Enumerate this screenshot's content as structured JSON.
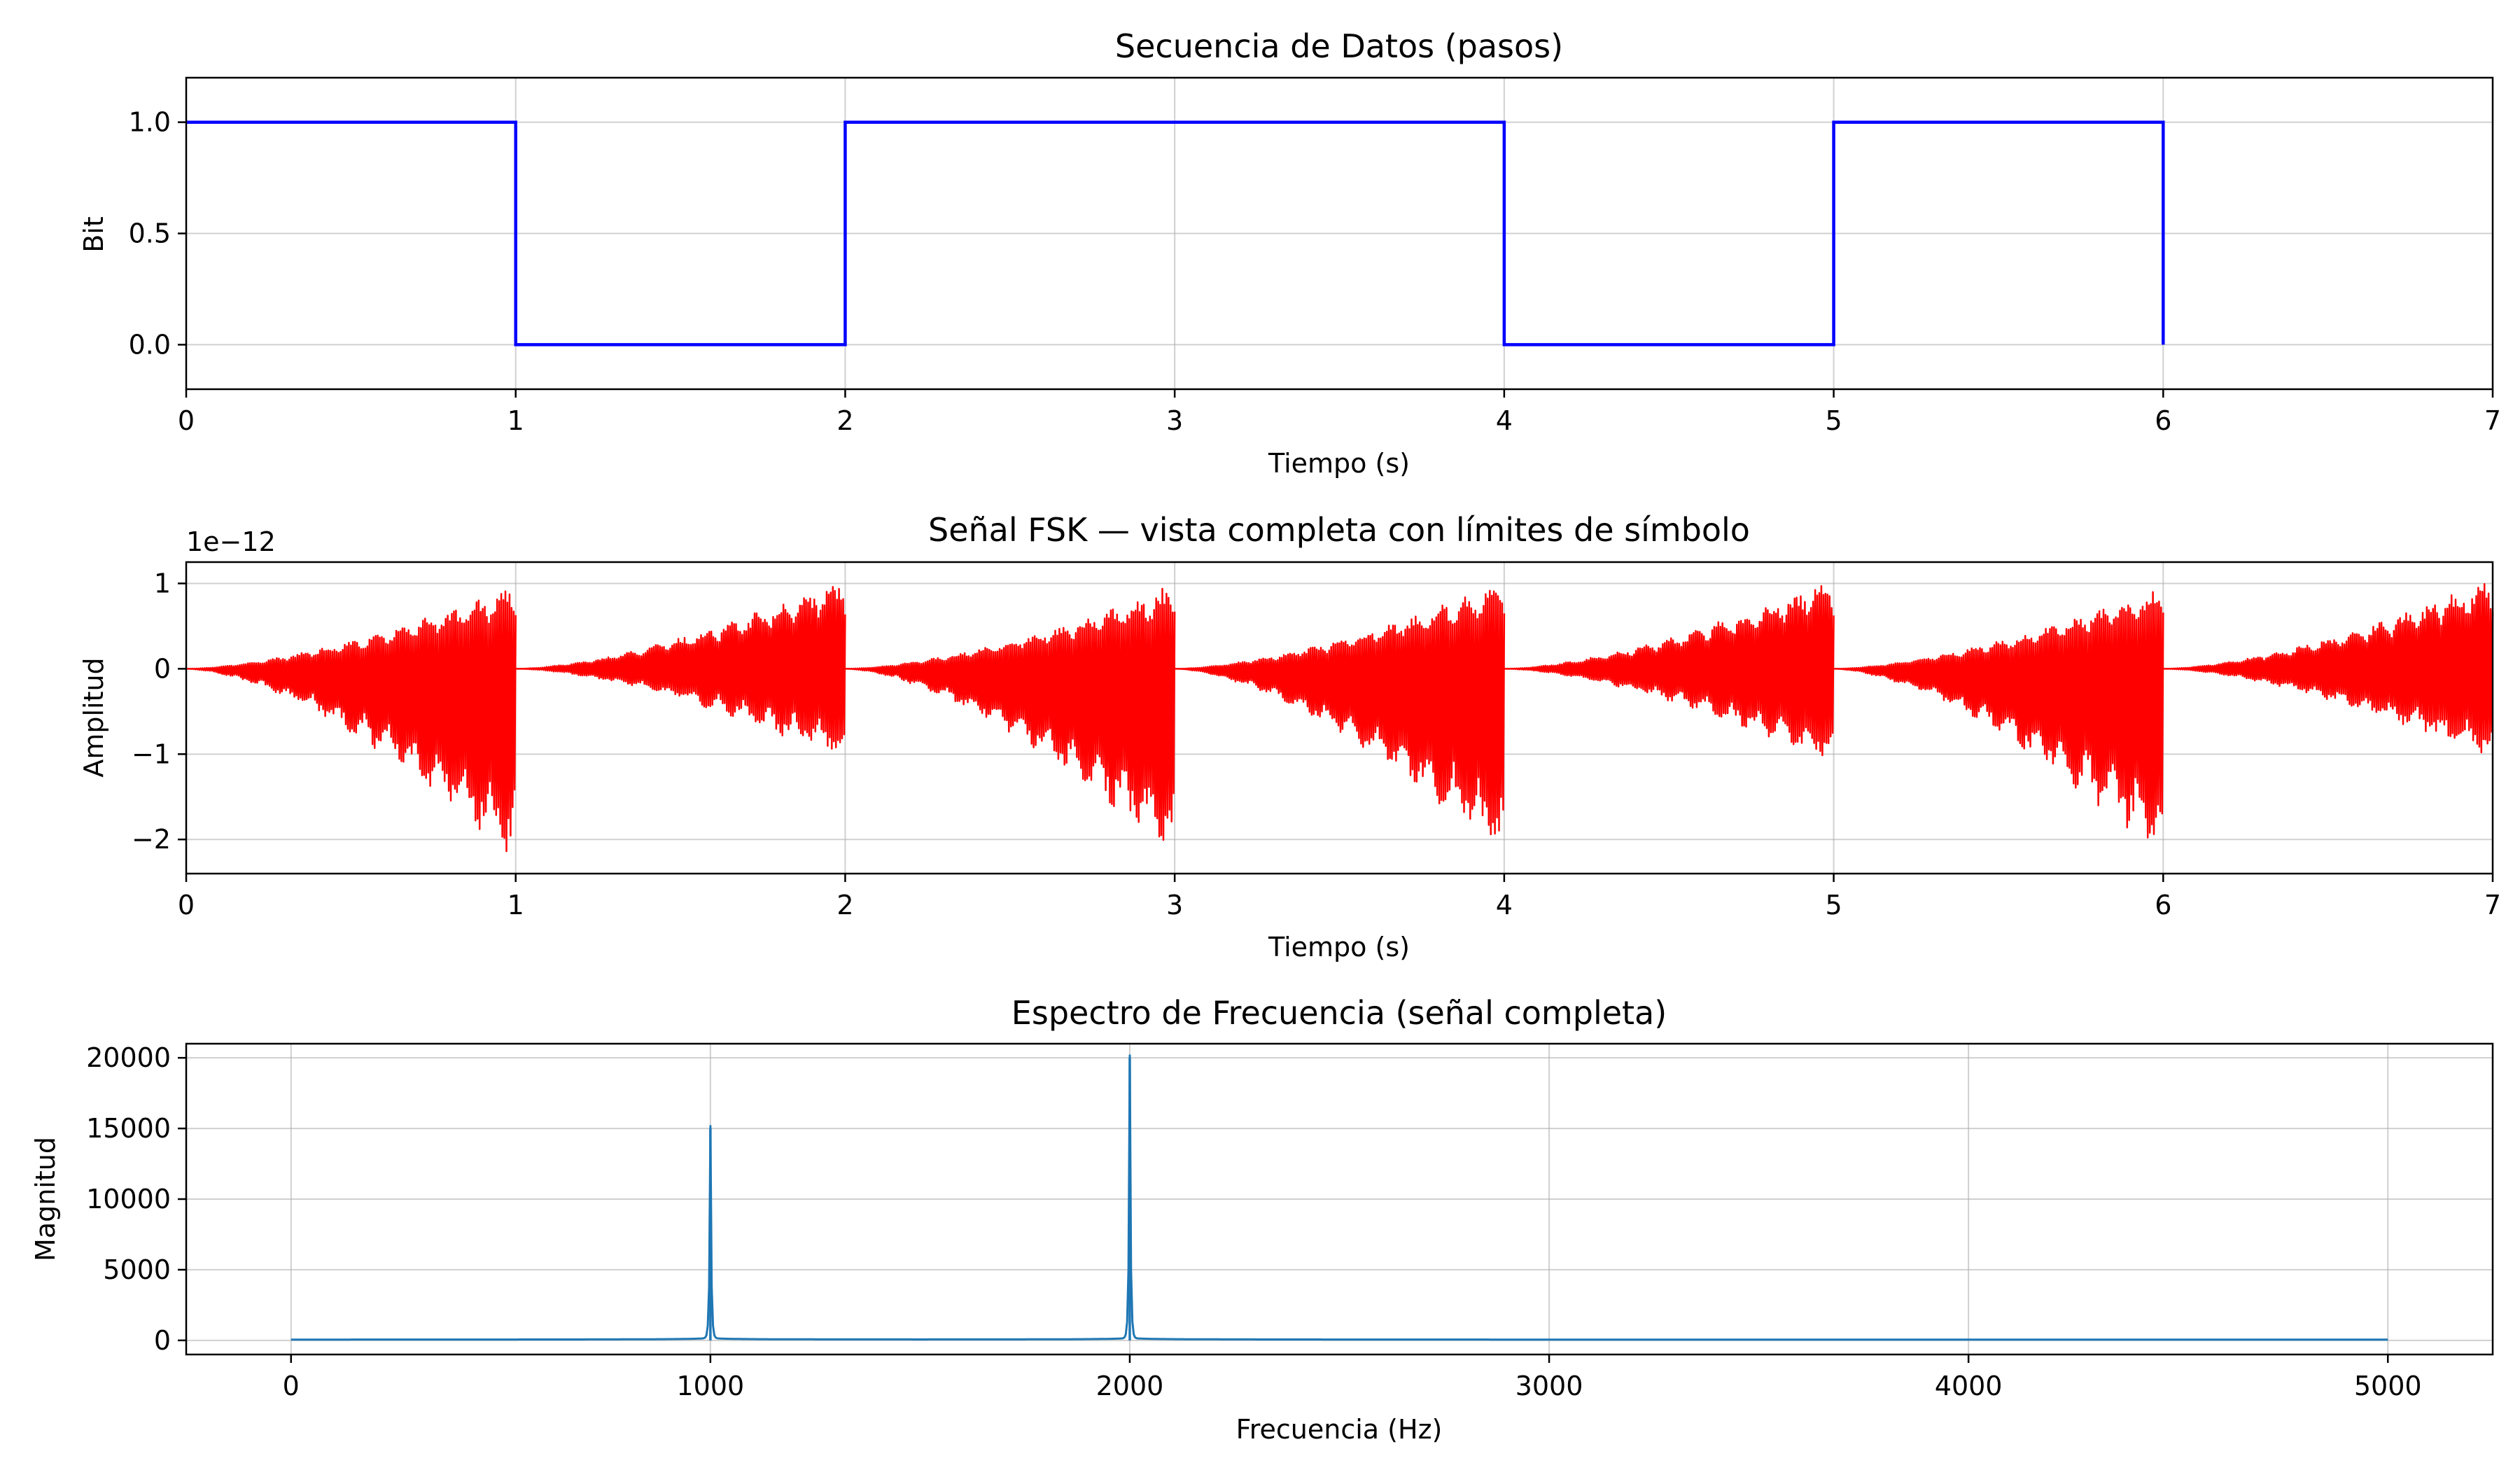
{
  "chart_data": [
    {
      "type": "line",
      "title": "Secuencia de Datos (pasos)",
      "xlabel": "Tiempo (s)",
      "ylabel": "Bit",
      "xlim": [
        0,
        7
      ],
      "ylim": [
        -0.2,
        1.2
      ],
      "xticks": [
        "0",
        "1",
        "2",
        "3",
        "4",
        "5",
        "6",
        "7"
      ],
      "yticks": [
        "0.0",
        "0.5",
        "1.0"
      ],
      "grid": true,
      "series": [
        {
          "color": "#0000ff",
          "step": "post",
          "x": [
            0,
            1,
            2,
            3,
            4,
            5,
            6
          ],
          "y": [
            1,
            0,
            1,
            1,
            0,
            1,
            0
          ]
        }
      ]
    },
    {
      "type": "line",
      "title": "Señal FSK — vista completa con límites de símbolo",
      "xlabel": "Tiempo (s)",
      "ylabel": "Amplitud",
      "offset_label": "1e−12",
      "xlim": [
        0,
        7
      ],
      "ylim": [
        -2.4,
        1.25
      ],
      "xticks": [
        "0",
        "1",
        "2",
        "3",
        "4",
        "5",
        "6",
        "7"
      ],
      "yticks": [
        "−2",
        "−1",
        "0",
        "1"
      ],
      "grid": true,
      "symbol_boundaries": [
        1,
        2,
        3,
        4,
        5,
        6
      ],
      "series": [
        {
          "color": "#ff0000",
          "segments": [
            {
              "t0": 0,
              "t1": 1,
              "max": 1.0,
              "min": -2.3
            },
            {
              "t0": 1,
              "t1": 2,
              "max": 1.1,
              "min": -1.1
            },
            {
              "t0": 2,
              "t1": 3,
              "max": 1.0,
              "min": -2.3
            },
            {
              "t0": 3,
              "t1": 4,
              "max": 1.05,
              "min": -2.3
            },
            {
              "t0": 4,
              "t1": 5,
              "max": 1.1,
              "min": -1.15
            },
            {
              "t0": 5,
              "t1": 6,
              "max": 1.0,
              "min": -2.3
            },
            {
              "t0": 6,
              "t1": 7,
              "max": 1.1,
              "min": -1.1
            }
          ]
        }
      ]
    },
    {
      "type": "line",
      "title": "Espectro de Frecuencia (señal completa)",
      "xlabel": "Frecuencia (Hz)",
      "ylabel": "Magnitud",
      "xlim": [
        -250,
        5250
      ],
      "ylim": [
        -1000,
        21000
      ],
      "xticks": [
        "0",
        "1000",
        "2000",
        "3000",
        "4000",
        "5000"
      ],
      "yticks": [
        "0",
        "5000",
        "10000",
        "15000",
        "20000"
      ],
      "grid": true,
      "series": [
        {
          "color": "#1f77b4",
          "x_range": [
            0,
            5000
          ],
          "baseline": 50,
          "peaks": [
            {
              "x": 1000,
              "y": 15000
            },
            {
              "x": 2000,
              "y": 20000
            }
          ]
        }
      ]
    }
  ]
}
